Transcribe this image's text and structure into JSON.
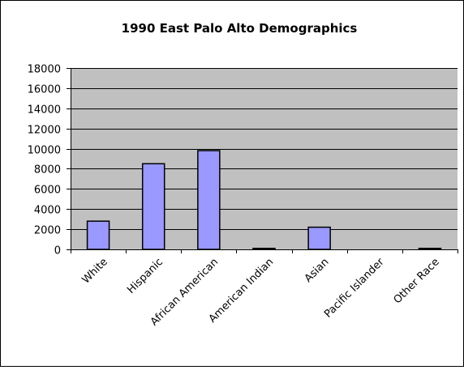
{
  "chart_data": {
    "type": "bar",
    "title": "1990 East Palo Alto Demographics",
    "xlabel": "",
    "ylabel": "",
    "categories": [
      "White",
      "Hispanic",
      "African American",
      "American Indian",
      "Asian",
      "Pacific Islander",
      "Other Race"
    ],
    "values": [
      2800,
      8500,
      9800,
      100,
      2200,
      0,
      100
    ],
    "ylim": [
      0,
      18000
    ],
    "yticks": [
      0,
      2000,
      4000,
      6000,
      8000,
      10000,
      12000,
      14000,
      16000,
      18000
    ],
    "grid": true,
    "legend": "none",
    "colors": {
      "bar_fill": "#9999ff",
      "bar_stroke": "#000000",
      "plot_background": "#c0c0c0",
      "page_background": "#ffffff"
    }
  }
}
